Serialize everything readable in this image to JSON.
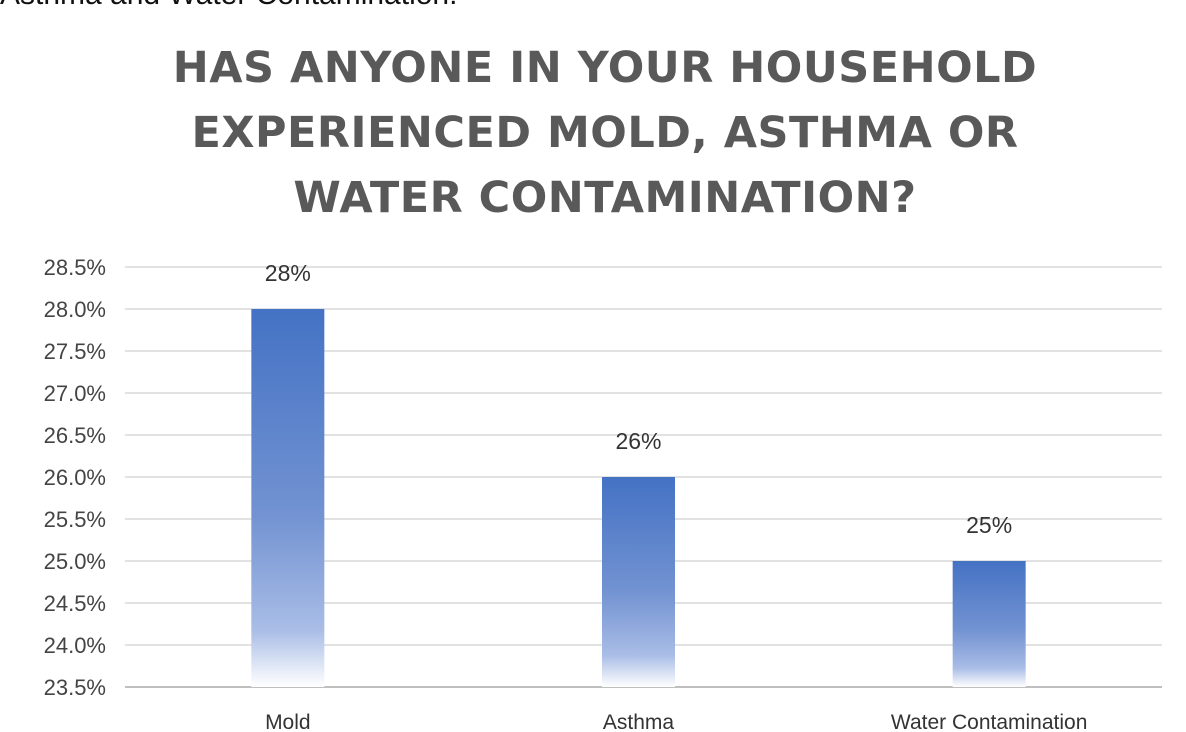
{
  "top_caption": "Asthma and Water Contamination.",
  "colors": {
    "bar_top": "#4472c4",
    "bar_bottom": "#ffffff",
    "gridline": "#d9d9d9",
    "axis": "#bfbfbf",
    "title": "#595959"
  },
  "chart_data": {
    "type": "bar",
    "title": "HAS ANYONE IN YOUR HOUSEHOLD EXPERIENCED MOLD, ASTHMA OR WATER CONTAMINATION?",
    "title_lines": [
      "HAS ANYONE IN YOUR HOUSEHOLD",
      "EXPERIENCED MOLD, ASTHMA OR",
      "WATER CONTAMINATION?"
    ],
    "categories": [
      "Mold",
      "Asthma",
      "Water Contamination"
    ],
    "values": [
      28,
      26,
      25
    ],
    "data_labels": [
      "28%",
      "26%",
      "25%"
    ],
    "xlabel": "",
    "ylabel": "",
    "ylim": [
      23.5,
      28.5
    ],
    "yticks": [
      28.5,
      28.0,
      27.5,
      27.0,
      26.5,
      26.0,
      25.5,
      25.0,
      24.5,
      24.0,
      23.5
    ],
    "ytick_labels": [
      "28.5%",
      "28.0%",
      "27.5%",
      "27.0%",
      "26.5%",
      "26.0%",
      "25.5%",
      "25.0%",
      "24.5%",
      "24.0%",
      "23.5%"
    ],
    "grid": true,
    "legend": "none"
  }
}
